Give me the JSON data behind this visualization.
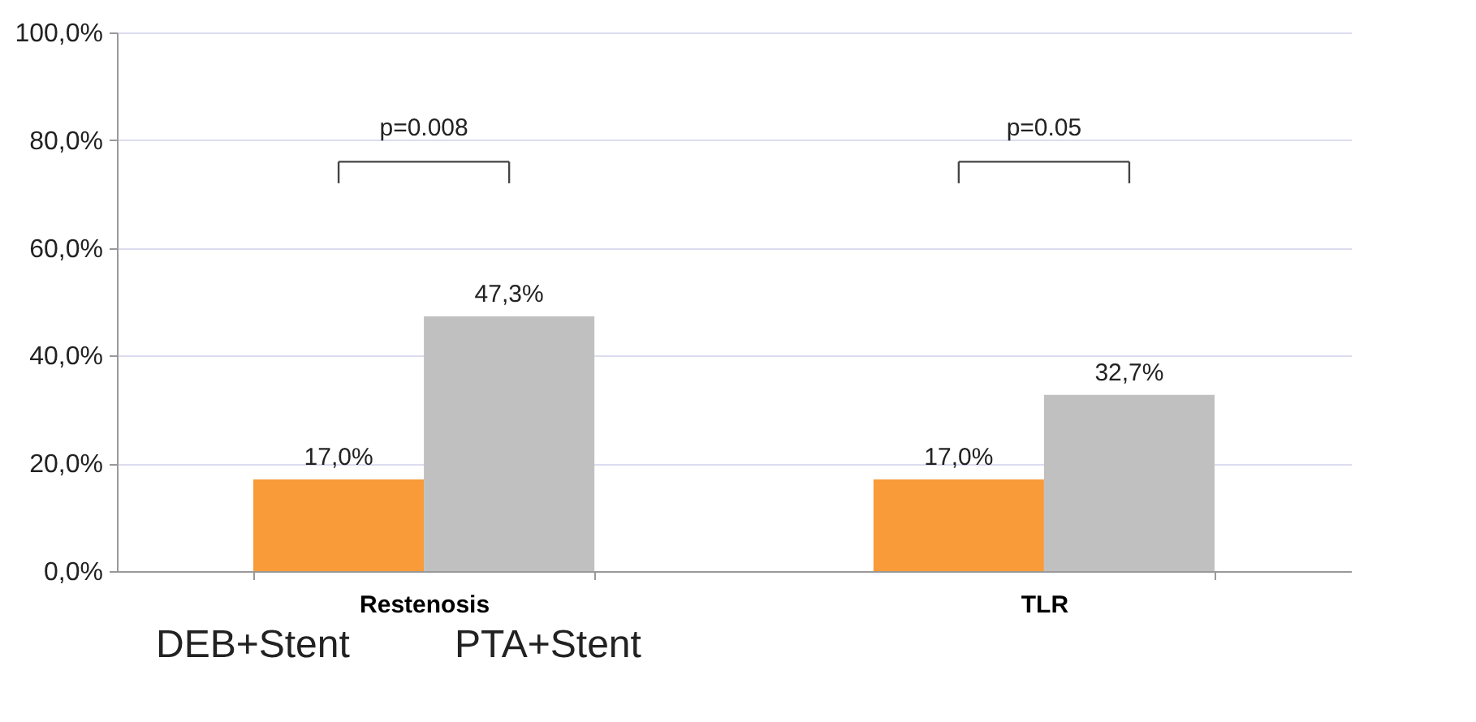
{
  "chart_data": {
    "type": "bar",
    "categories": [
      "Restenosis",
      "TLR"
    ],
    "series": [
      {
        "name": "DEB+Stent",
        "color": "#f89b38",
        "values": [
          17.0,
          17.0
        ],
        "value_labels": [
          "17,0%",
          "17,0%"
        ]
      },
      {
        "name": "PTA+Stent",
        "color": "#c0c0c0",
        "values": [
          47.3,
          32.7
        ],
        "value_labels": [
          "47,3%",
          "32,7%"
        ]
      }
    ],
    "ylim": [
      0,
      100
    ],
    "yticks": [
      {
        "value": 0,
        "label": "0,0%"
      },
      {
        "value": 20,
        "label": "20,0%"
      },
      {
        "value": 40,
        "label": "40,0%"
      },
      {
        "value": 60,
        "label": "60,0%"
      },
      {
        "value": 80,
        "label": "80,0%"
      },
      {
        "value": 100,
        "label": "100,0%"
      }
    ],
    "grid": "y",
    "legend": "bottom",
    "annotations": [
      "p=0.008",
      "p=0.05"
    ]
  }
}
